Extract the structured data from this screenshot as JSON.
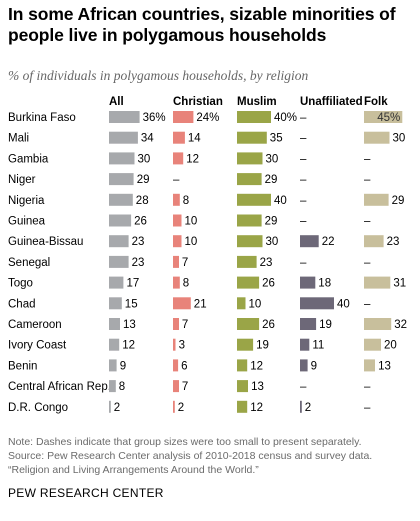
{
  "title": "In some African countries, sizable minorities of people live in polygamous households",
  "subtitle": "% of individuals in polygamous households, by religion",
  "notes": [
    "Note: Dashes indicate that group sizes were too small to present separately.",
    "Source: Pew Research Center analysis of 2010-2018 census and survey data.",
    "“Religion and Living Arrangements Around the World.”"
  ],
  "footer": "PEW RESEARCH CENTER",
  "dash_symbol": "–",
  "colors": {
    "All": "#a7a9ac",
    "Christian": "#e8837a",
    "Muslim": "#9aa547",
    "Unaffiliated": "#6d6878",
    "Folk": "#c8bf9c"
  },
  "chart_data": {
    "type": "bar",
    "categories": [
      "Burkina Faso",
      "Mali",
      "Gambia",
      "Niger",
      "Nigeria",
      "Guinea",
      "Guinea-Bissau",
      "Senegal",
      "Togo",
      "Chad",
      "Cameroon",
      "Ivory Coast",
      "Benin",
      "Central African Rep.",
      "D.R. Congo"
    ],
    "series": [
      {
        "name": "All",
        "values": [
          36,
          34,
          30,
          29,
          28,
          26,
          23,
          23,
          17,
          15,
          13,
          12,
          9,
          8,
          2
        ],
        "first_label": "36%"
      },
      {
        "name": "Christian",
        "values": [
          24,
          14,
          12,
          null,
          8,
          10,
          10,
          7,
          8,
          21,
          7,
          3,
          6,
          7,
          2
        ],
        "first_label": "24%"
      },
      {
        "name": "Muslim",
        "values": [
          40,
          35,
          30,
          29,
          40,
          29,
          30,
          23,
          26,
          10,
          26,
          19,
          12,
          13,
          12
        ],
        "first_label": "40%"
      },
      {
        "name": "Unaffiliated",
        "values": [
          null,
          null,
          null,
          null,
          null,
          null,
          22,
          null,
          18,
          40,
          19,
          11,
          9,
          null,
          2
        ],
        "first_label": null
      },
      {
        "name": "Folk",
        "values": [
          45,
          30,
          null,
          null,
          29,
          null,
          23,
          null,
          31,
          null,
          32,
          20,
          13,
          null,
          null
        ],
        "first_label": "45%"
      }
    ]
  }
}
